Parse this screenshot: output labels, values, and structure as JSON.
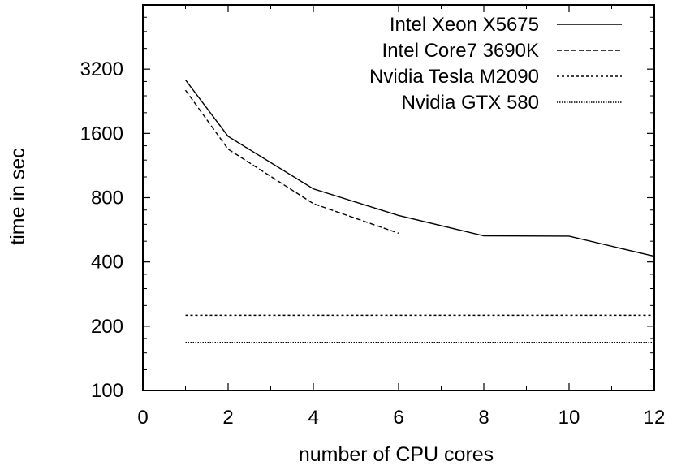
{
  "chart_data": {
    "type": "line",
    "xlabel": "number of CPU cores",
    "ylabel": "time in sec",
    "xlim": [
      0,
      12
    ],
    "ylim": [
      100,
      6400
    ],
    "yscale": "log2",
    "grid": false,
    "legend_position": "top-right",
    "x_ticks": [
      "0",
      "2",
      "4",
      "6",
      "8",
      "10",
      "12"
    ],
    "y_ticks": [
      "100",
      "200",
      "400",
      "800",
      "1600",
      "3200"
    ],
    "series": [
      {
        "name": "Intel Xeon X5675",
        "dash": "solid",
        "x": [
          1,
          2,
          4,
          6,
          8,
          10,
          12
        ],
        "y": [
          2850,
          1550,
          880,
          660,
          530,
          528,
          425
        ]
      },
      {
        "name": "Intel Core7 3690K",
        "dash": "dashed",
        "x": [
          1,
          2,
          4,
          6
        ],
        "y": [
          2550,
          1350,
          750,
          545
        ]
      },
      {
        "name": "Nvidia Tesla M2090",
        "dash": "dotted-dense",
        "x": [
          1,
          12
        ],
        "y": [
          225,
          225
        ]
      },
      {
        "name": "Nvidia GTX 580",
        "dash": "dotted",
        "x": [
          1,
          12
        ],
        "y": [
          168,
          168
        ]
      }
    ]
  }
}
